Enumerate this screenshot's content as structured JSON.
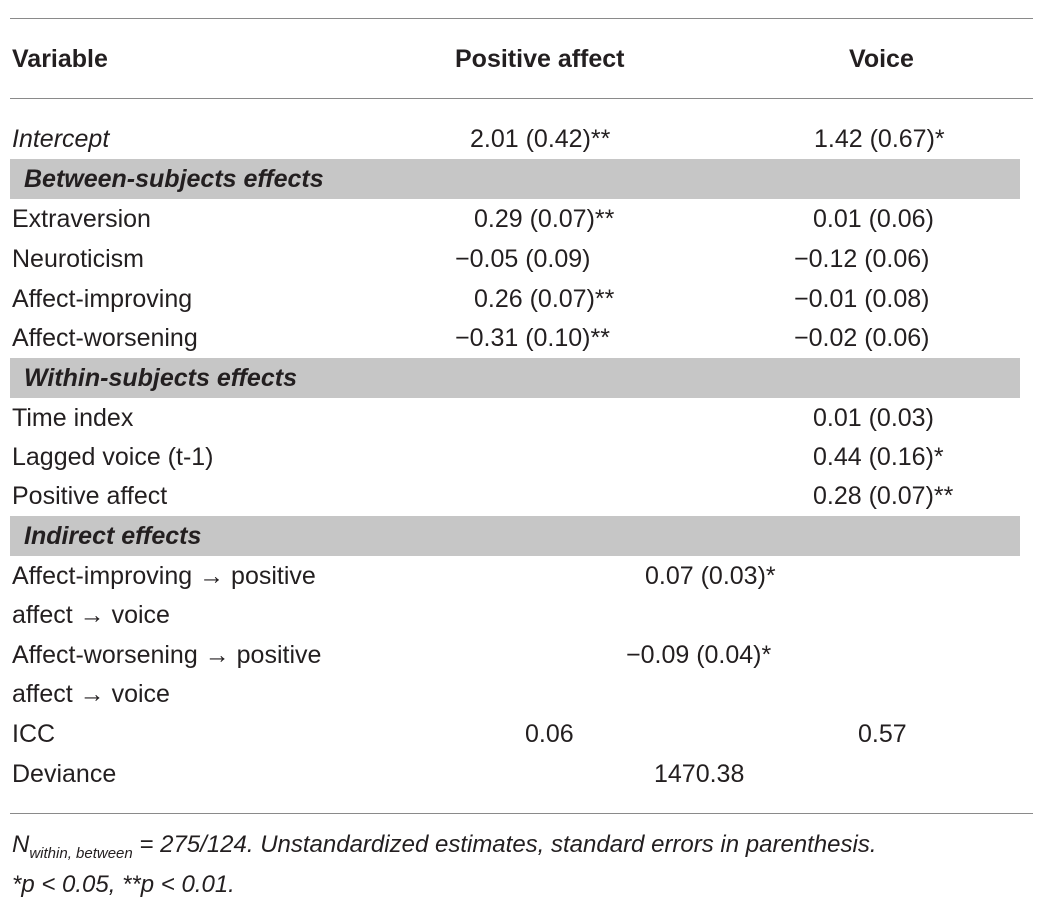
{
  "header": {
    "variable": "Variable",
    "positive_affect": "Positive affect",
    "voice": "Voice"
  },
  "rows": {
    "intercept": {
      "label": "Intercept",
      "pa": "2.01 (0.42)**",
      "voice": "1.42 (0.67)*"
    },
    "between_title": "Between-subjects effects",
    "extraversion": {
      "label": "Extraversion",
      "pa": "0.29 (0.07)**",
      "voice": "0.01 (0.06)"
    },
    "neuroticism": {
      "label": "Neuroticism",
      "pa": "−0.05 (0.09)",
      "voice": "−0.12 (0.06)"
    },
    "affect_improving": {
      "label": "Affect-improving",
      "pa": "0.26 (0.07)**",
      "voice": "−0.01 (0.08)"
    },
    "affect_worsening": {
      "label": "Affect-worsening",
      "pa": "−0.31 (0.10)**",
      "voice": "−0.02 (0.06)"
    },
    "within_title": "Within-subjects effects",
    "time_index": {
      "label": "Time index",
      "voice": "0.01 (0.03)"
    },
    "lagged_voice": {
      "label": "Lagged voice (t-1)",
      "voice": "0.44 (0.16)*"
    },
    "positive_affect": {
      "label": "Positive affect",
      "voice": "0.28 (0.07)**"
    },
    "indirect_title": "Indirect effects",
    "ind_improving": {
      "label_line1": "Affect-improving → positive",
      "label_line2": "affect → voice",
      "value": "0.07 (0.03)*"
    },
    "ind_worsening": {
      "label_line1": "Affect-worsening → positive",
      "label_line2": "affect → voice",
      "value": "−0.09 (0.04)*"
    },
    "icc": {
      "label": "ICC",
      "pa": "0.06",
      "voice": "0.57"
    },
    "deviance": {
      "label": "Deviance",
      "value": "1470.38"
    }
  },
  "notes": {
    "n_symbol": "N",
    "n_subscript": "within, between",
    "n_rest": " = 275/124. Unstandardized estimates, standard errors in parenthesis.",
    "significance": "*p < 0.05, **p < 0.01."
  }
}
